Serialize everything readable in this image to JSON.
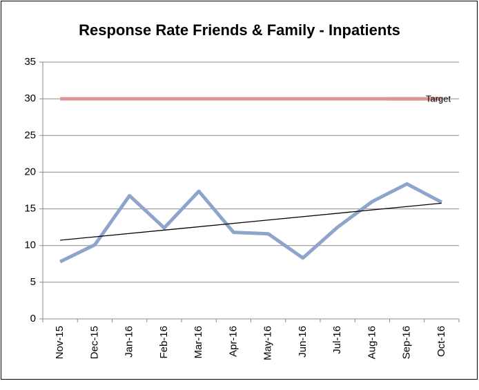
{
  "chart_data": {
    "type": "line",
    "title": "Response Rate Friends & Family - Inpatients",
    "categories": [
      "Nov-15",
      "Dec-15",
      "Jan-16",
      "Feb-16",
      "Mar-16",
      "Apr-16",
      "May-16",
      "Jun-16",
      "Jul-16",
      "Aug-16",
      "Sep-16",
      "Oct-16"
    ],
    "series": [
      {
        "color": "#8ea5cb",
        "values": [
          7.8,
          10.1,
          16.8,
          12.4,
          17.4,
          11.8,
          11.6,
          8.3,
          12.5,
          16.0,
          18.4,
          15.9
        ]
      },
      {
        "name": "Target",
        "color": "#d99694",
        "values": [
          30,
          30,
          30,
          30,
          30,
          30,
          30,
          30,
          30,
          30,
          30,
          30
        ]
      }
    ],
    "ylim": [
      0,
      35
    ],
    "yticks": [
      0,
      5,
      10,
      15,
      20,
      25,
      30,
      35
    ],
    "grid": true,
    "trendline": true,
    "legend": "right"
  }
}
